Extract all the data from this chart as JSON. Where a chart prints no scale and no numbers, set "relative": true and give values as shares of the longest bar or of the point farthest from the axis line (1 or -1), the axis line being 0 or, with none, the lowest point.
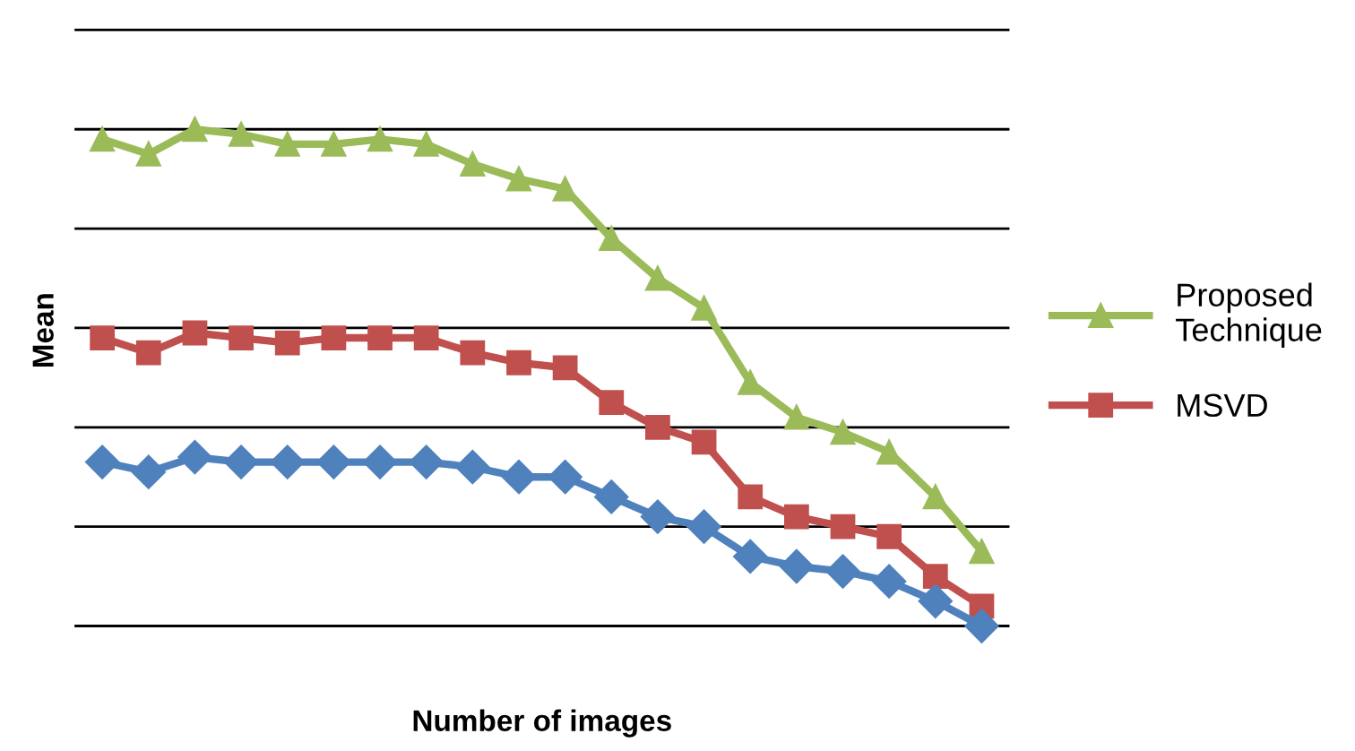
{
  "chart_data": {
    "type": "line",
    "relative": true,
    "xlabel": "Number of images",
    "ylabel": "Mean",
    "grid": "y",
    "legend": "right",
    "categories": [
      null,
      null,
      null,
      null,
      null,
      null,
      null,
      null,
      null,
      null,
      null,
      null,
      null,
      null,
      null,
      null,
      null,
      null,
      null,
      null
    ],
    "series": [
      {
        "name": "Proposed Technique",
        "color": "#9bbb59",
        "marker": "triangle",
        "values": [
          0.98,
          0.95,
          1.0,
          0.99,
          0.97,
          0.97,
          0.98,
          0.97,
          0.93,
          0.9,
          0.88,
          0.78,
          0.7,
          0.64,
          0.49,
          0.42,
          0.39,
          0.35,
          0.26,
          0.15
        ]
      },
      {
        "name": "MSVD",
        "color": "#c0504d",
        "marker": "square",
        "values": [
          0.58,
          0.55,
          0.59,
          0.58,
          0.57,
          0.58,
          0.58,
          0.58,
          0.55,
          0.53,
          0.52,
          0.45,
          0.4,
          0.37,
          0.26,
          0.22,
          0.2,
          0.18,
          0.1,
          0.04
        ]
      },
      {
        "color": "#4f81bd",
        "marker": "diamond",
        "values": [
          0.33,
          0.31,
          0.34,
          0.33,
          0.33,
          0.33,
          0.33,
          0.33,
          0.32,
          0.3,
          0.3,
          0.26,
          0.22,
          0.2,
          0.14,
          0.12,
          0.11,
          0.09,
          0.05,
          0.0
        ]
      }
    ]
  }
}
